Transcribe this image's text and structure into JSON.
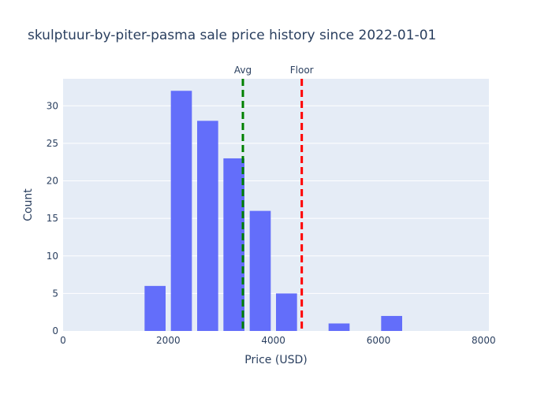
{
  "chart_data": {
    "type": "bar",
    "title": "skulptuur-by-piter-pasma sale price history since 2022-01-01",
    "xlabel": "Price (USD)",
    "ylabel": "Count",
    "xlim": [
      0,
      8100
    ],
    "ylim": [
      0,
      33.6
    ],
    "xticks": [
      0,
      2000,
      4000,
      6000,
      8000
    ],
    "xtick_labels": [
      "0",
      "2000",
      "4000",
      "6000",
      "8000"
    ],
    "yticks": [
      0,
      5,
      10,
      15,
      20,
      25,
      30
    ],
    "ytick_labels": [
      "0",
      "5",
      "10",
      "15",
      "20",
      "25",
      "30"
    ],
    "grid": true,
    "bar_color": "#636efa",
    "plot_background": "#e5ecf6",
    "bins": [
      {
        "x0": 1500,
        "x1": 2000,
        "count": 6
      },
      {
        "x0": 2000,
        "x1": 2500,
        "count": 32
      },
      {
        "x0": 2500,
        "x1": 3000,
        "count": 28
      },
      {
        "x0": 3000,
        "x1": 3500,
        "count": 23
      },
      {
        "x0": 3500,
        "x1": 4000,
        "count": 16
      },
      {
        "x0": 4000,
        "x1": 4500,
        "count": 5
      },
      {
        "x0": 4500,
        "x1": 5000,
        "count": 0
      },
      {
        "x0": 5000,
        "x1": 5500,
        "count": 1
      },
      {
        "x0": 5500,
        "x1": 6000,
        "count": 0
      },
      {
        "x0": 6000,
        "x1": 6500,
        "count": 2
      }
    ],
    "reference_lines": [
      {
        "label": "Avg",
        "x": 3420,
        "color": "#008000",
        "style": "dashed"
      },
      {
        "label": "Floor",
        "x": 4540,
        "color": "#ff0000",
        "style": "dashed"
      }
    ]
  }
}
